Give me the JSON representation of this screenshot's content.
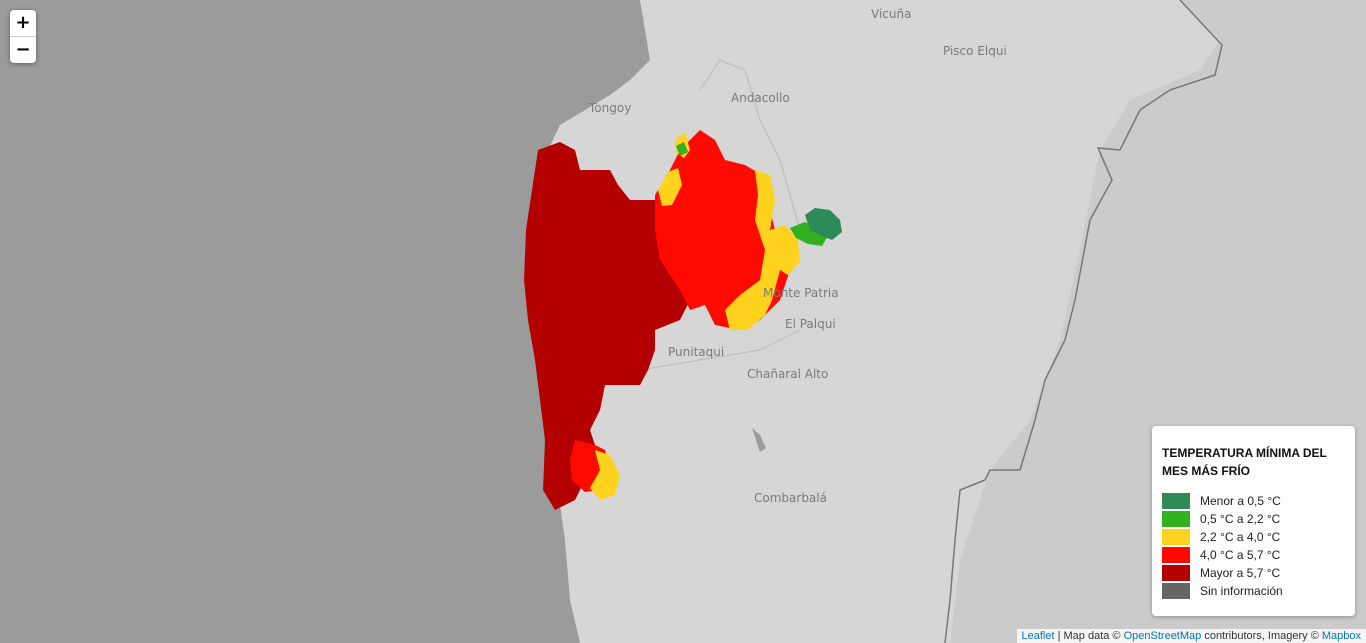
{
  "map": {
    "places": [
      {
        "id": "vicuna",
        "name": "Vicuña"
      },
      {
        "id": "pisco",
        "name": "Pisco Elqui"
      },
      {
        "id": "tongoy",
        "name": "Tongoy"
      },
      {
        "id": "andacollo",
        "name": "Andacollo"
      },
      {
        "id": "montepatria",
        "name": "Monte Patria"
      },
      {
        "id": "elpalqui",
        "name": "El Palqui"
      },
      {
        "id": "punitaqui",
        "name": "Punitaqui"
      },
      {
        "id": "chanaral",
        "name": "Chañaral Alto"
      },
      {
        "id": "combarbala",
        "name": "Combarbalá"
      }
    ],
    "colors": {
      "ocean": "#9b9b9b",
      "land": "#d6d6d6",
      "menor": "#2e8b57",
      "c05_22": "#33b01e",
      "c22_40": "#ffd21e",
      "c40_57": "#ff0a00",
      "mayor": "#b40000",
      "sin": "#666666"
    }
  },
  "zoom": {
    "in_label": "+",
    "out_label": "−"
  },
  "legend": {
    "title": "TEMPERATURA MÍNIMA DEL MES MÁS FRÍO",
    "items": [
      {
        "label": "Menor a 0,5 °C",
        "color": "#2e8b57"
      },
      {
        "label": "0,5 °C a 2,2 °C",
        "color": "#33b01e"
      },
      {
        "label": "2,2 °C a 4,0 °C",
        "color": "#ffd21e"
      },
      {
        "label": "4,0 °C a 5,7 °C",
        "color": "#ff0a00"
      },
      {
        "label": "Mayor a 5,7 °C",
        "color": "#b40000"
      },
      {
        "label": "Sin información",
        "color": "#666666"
      }
    ]
  },
  "attribution": {
    "leaflet": "Leaflet",
    "sep1": " | Map data © ",
    "osm": "OpenStreetMap",
    "sep2": " contributors, Imagery © ",
    "mapbox": "Mapbox"
  }
}
